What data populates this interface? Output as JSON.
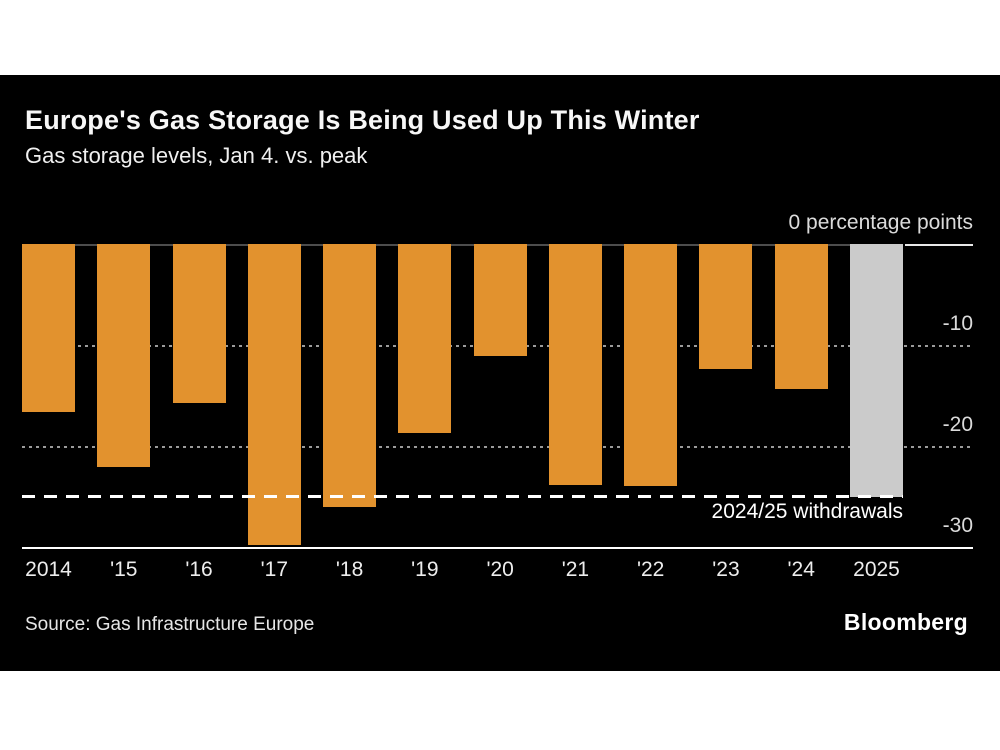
{
  "header": {
    "title": "Europe's Gas Storage Is Being Used Up This Winter",
    "subtitle": "Gas storage levels, Jan 4. vs. peak"
  },
  "footer": {
    "source": "Source: Gas Infrastructure Europe",
    "brand": "Bloomberg"
  },
  "chart_data": {
    "type": "bar",
    "title": "Europe's Gas Storage Is Being Used Up This Winter",
    "subtitle": "Gas storage levels, Jan 4. vs. peak",
    "categories": [
      "2014",
      "'15",
      "'16",
      "'17",
      "'18",
      "'19",
      "'20",
      "'21",
      "'22",
      "'23",
      "'24",
      "2025"
    ],
    "values": [
      -16.6,
      -22.1,
      -15.7,
      -29.8,
      -26.0,
      -18.7,
      -11.1,
      -23.9,
      -24.0,
      -12.4,
      -14.4,
      -25.0
    ],
    "unit": "percentage points",
    "ylim": [
      -30,
      0
    ],
    "yticks": [
      0,
      -10,
      -20,
      -30
    ],
    "ytick_labels": [
      "0 percentage points",
      "-10",
      "-20",
      "-30"
    ],
    "grid": "horizontal dotted at -10 and -20, solid baseline at -30",
    "legend": "none",
    "annotation": {
      "label": "2024/25 withdrawals",
      "value": -25.0
    },
    "highlight_category": "2025",
    "colors": {
      "bar": "#e2922e",
      "highlight_bar": "#cbcbcb",
      "background": "#000000",
      "zero_line": "#4d4d4d",
      "grid_dots": "#9b9b9b",
      "axis": "#ffffff",
      "text": "#f0f0f0"
    }
  }
}
